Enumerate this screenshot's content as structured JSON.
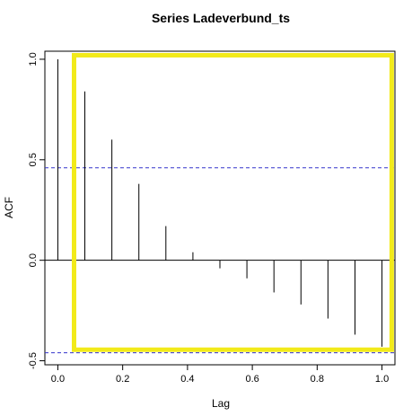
{
  "chart_data": {
    "type": "bar",
    "subtype": "acf-stem",
    "title": "Series  Ladeverbund_ts",
    "xlabel": "Lag",
    "ylabel": "ACF",
    "xlim": [
      -0.04,
      1.04
    ],
    "ylim": [
      -0.52,
      1.04
    ],
    "x_ticks": [
      0.0,
      0.2,
      0.4,
      0.6,
      0.8,
      1.0
    ],
    "x_tick_labels": [
      "0.0",
      "0.2",
      "0.4",
      "0.6",
      "0.8",
      "1.0"
    ],
    "y_ticks": [
      -0.5,
      0.0,
      0.5,
      1.0
    ],
    "y_tick_labels": [
      "-0.5",
      "0.0",
      "0.5",
      "1.0"
    ],
    "lags": [
      0.0,
      0.0833,
      0.1667,
      0.25,
      0.3333,
      0.4167,
      0.5,
      0.5833,
      0.6667,
      0.75,
      0.8333,
      0.9167,
      1.0
    ],
    "acf": [
      1.0,
      0.84,
      0.6,
      0.38,
      0.17,
      0.04,
      -0.04,
      -0.09,
      -0.16,
      -0.22,
      -0.29,
      -0.37,
      -0.43
    ],
    "confidence_bounds": [
      0.46,
      -0.46
    ],
    "confidence_line_color": "#3333cc",
    "zero_line": true,
    "grid": false,
    "legend": "none",
    "highlight_rect": {
      "color": "#f2ea1a",
      "x_range": [
        0.05,
        1.03
      ],
      "y_range": [
        -0.445,
        1.02
      ]
    }
  }
}
